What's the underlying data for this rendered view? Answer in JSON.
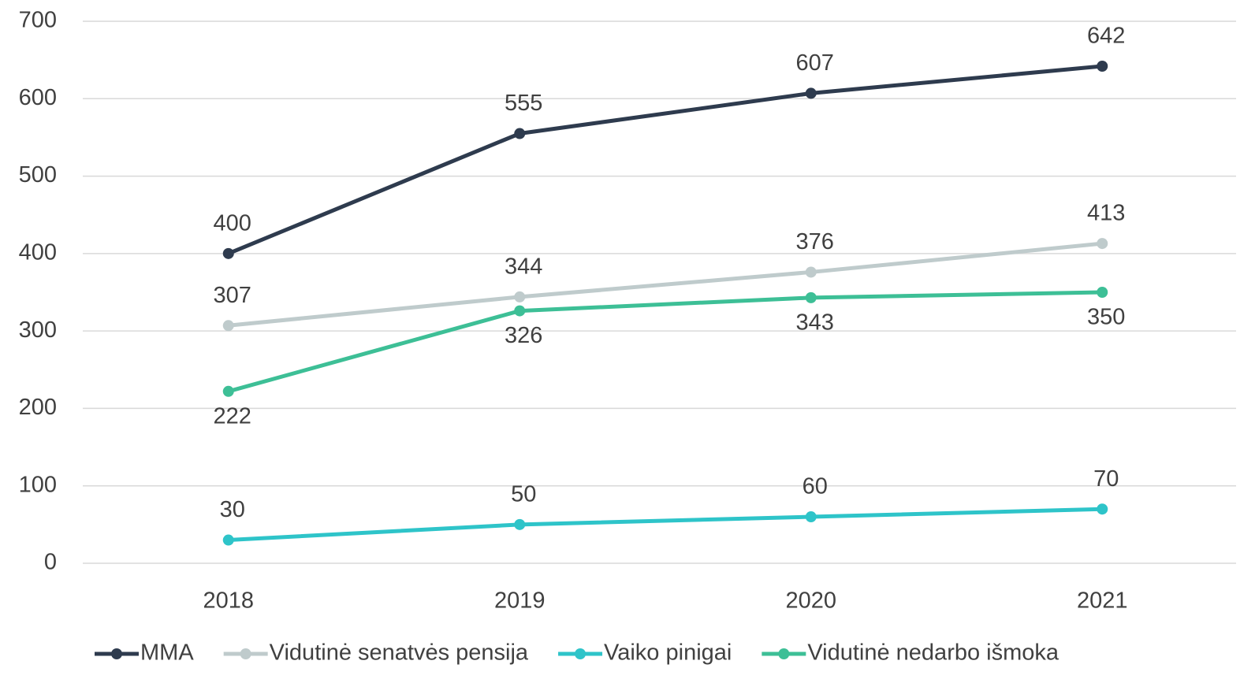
{
  "chart_data": {
    "type": "line",
    "categories": [
      "2018",
      "2019",
      "2020",
      "2021"
    ],
    "series": [
      {
        "name": "MMA",
        "color": "#2e3b4e",
        "values": [
          400,
          555,
          607,
          642
        ]
      },
      {
        "name": "Vidutinė senatvės pensija",
        "color": "#bfcbcc",
        "values": [
          307,
          344,
          376,
          413
        ]
      },
      {
        "name": "Vaiko pinigai",
        "color": "#2ec4c9",
        "values": [
          30,
          50,
          60,
          70
        ]
      },
      {
        "name": "Vidutinė nedarbo išmoka",
        "color": "#3dbf96",
        "values": [
          222,
          326,
          343,
          350
        ]
      }
    ],
    "ylim": [
      0,
      700
    ],
    "yticks": [
      0,
      100,
      200,
      300,
      400,
      500,
      600,
      700
    ],
    "grid": true,
    "legend": "bottom"
  }
}
